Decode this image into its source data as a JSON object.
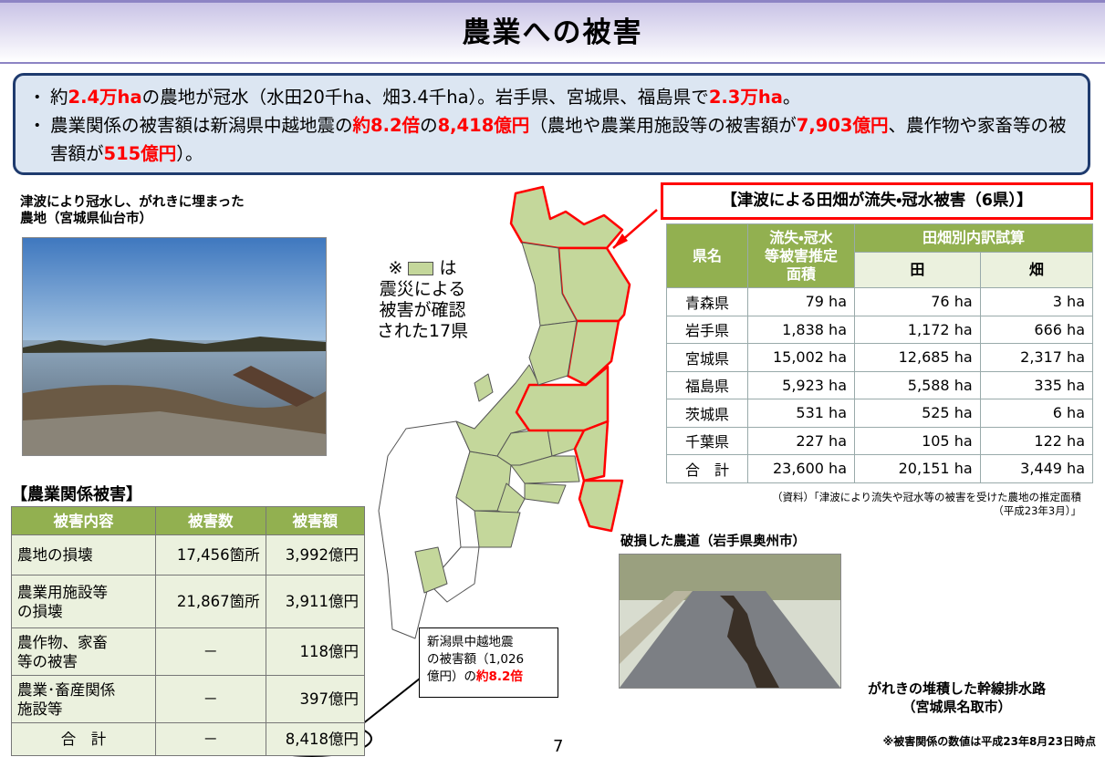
{
  "header": {
    "title": "農業への被害"
  },
  "summary": {
    "bullet_mark": "・",
    "bullets": [
      {
        "parts": [
          {
            "text": "約"
          },
          {
            "text": "2.4万ha",
            "highlight": true
          },
          {
            "text": "の農地が冠水（水田20千ha、畑3.4千ha）。岩手県、宮城県、福島県で"
          },
          {
            "text": "2.3万ha",
            "highlight": true
          },
          {
            "text": "。"
          }
        ]
      },
      {
        "parts": [
          {
            "text": "農業関係の被害額は新潟県中越地震の"
          },
          {
            "text": "約8.2倍",
            "highlight": true
          },
          {
            "text": "の"
          },
          {
            "text": "8,418億円",
            "highlight": true
          },
          {
            "text": "（農地や農業用施設等の被害額が"
          },
          {
            "text": "7,903億円",
            "highlight": true
          },
          {
            "text": "、農作物や家畜等の被害額が"
          },
          {
            "text": "515億円",
            "highlight": true
          },
          {
            "text": "）。"
          }
        ]
      }
    ]
  },
  "photo_farmland": {
    "caption": [
      "津波により冠水し、がれきに埋まった",
      "農地（宮城県仙台市）"
    ]
  },
  "map_legend": {
    "mark": "※",
    "suffix": "は",
    "lines": [
      "震災による",
      "被害が確認",
      "された17県"
    ]
  },
  "tsunami_table": {
    "title": "【津波による田畑が流失・冠水被害（6県）】",
    "headers": {
      "prefecture": "県名",
      "area": [
        "流失・冠水",
        "等被害推定",
        "面積"
      ],
      "breakdown": "田畑別内訳試算",
      "paddy": "田",
      "field": "畑"
    },
    "rows": [
      [
        "青森県",
        "79 ha",
        "76 ha",
        "3 ha"
      ],
      [
        "岩手県",
        "1,838 ha",
        "1,172 ha",
        "666 ha"
      ],
      [
        "宮城県",
        "15,002 ha",
        "12,685 ha",
        "2,317 ha"
      ],
      [
        "福島県",
        "5,923 ha",
        "5,588 ha",
        "335 ha"
      ],
      [
        "茨城県",
        "531 ha",
        "525 ha",
        "6 ha"
      ],
      [
        "千葉県",
        "227 ha",
        "105 ha",
        "122 ha"
      ],
      [
        "合　計",
        "23,600 ha",
        "20,151 ha",
        "3,449 ha"
      ]
    ],
    "source": [
      "（資料）「津波により流失や冠水等の被害を受けた農地の推定面積",
      "（平成23年3月）」"
    ]
  },
  "photo_road": {
    "caption": "破損した農道（岩手県奥州市）"
  },
  "photo_channel": {
    "caption": [
      "がれきの堆積した幹線排水路",
      "（宮城県名取市）"
    ]
  },
  "damage_table": {
    "title": "【農業関係被害】",
    "headers": [
      "被害内容",
      "被害数",
      "被害額"
    ],
    "rows": [
      [
        [
          "農地の損壊"
        ],
        "17,456箇所",
        "3,992億円"
      ],
      [
        [
          "農業用施設等",
          "の損壊"
        ],
        "21,867箇所",
        "3,911億円"
      ],
      [
        [
          "農作物、家畜",
          "等の被害"
        ],
        "－",
        "118億円"
      ],
      [
        [
          "農業･畜産関係",
          "施設等"
        ],
        "－",
        "397億円"
      ],
      [
        [
          "合　計"
        ],
        "－",
        "8,418億円"
      ]
    ]
  },
  "callout": {
    "lines": [
      "新潟県中越地震",
      "の被害額（1,026"
    ],
    "last_prefix": "億円）の",
    "last_highlight": "約8.2倍"
  },
  "note": "※被害関係の数値は平成23年8月23日時点",
  "page_number": "7"
}
